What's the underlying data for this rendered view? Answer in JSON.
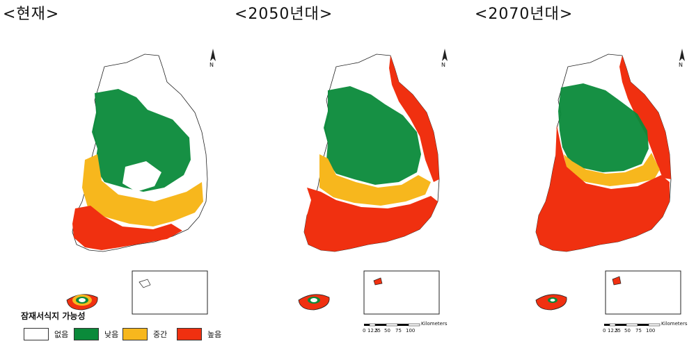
{
  "panels": [
    {
      "title": "<현재>"
    },
    {
      "title": "<2050년대>"
    },
    {
      "title": "<2070년대>"
    }
  ],
  "north_label": "N",
  "legend": {
    "title": "잠재서식지 가능성",
    "items": [
      {
        "label": "없음",
        "color": "#ffffff"
      },
      {
        "label": "낮음",
        "color": "#0a8a3a"
      },
      {
        "label": "중간",
        "color": "#f7b71d"
      },
      {
        "label": "높음",
        "color": "#f03010"
      }
    ]
  },
  "scalebar": {
    "ticks": [
      "0",
      "12.5",
      "25",
      "50",
      "75",
      "100"
    ],
    "unit": "Kilometers"
  }
}
